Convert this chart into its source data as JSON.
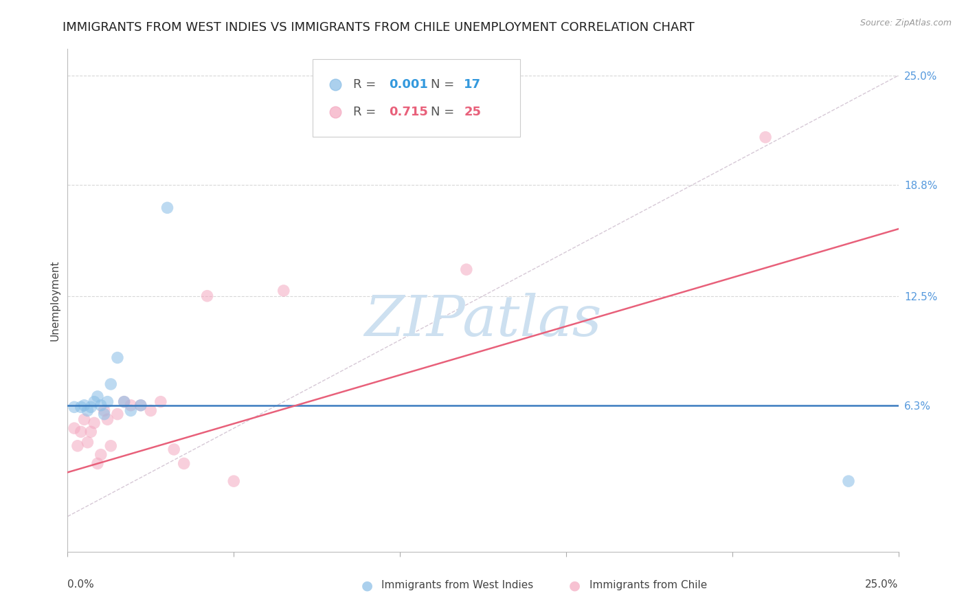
{
  "title": "IMMIGRANTS FROM WEST INDIES VS IMMIGRANTS FROM CHILE UNEMPLOYMENT CORRELATION CHART",
  "source": "Source: ZipAtlas.com",
  "ylabel": "Unemployment",
  "xlim": [
    0.0,
    0.25
  ],
  "ylim": [
    -0.02,
    0.265
  ],
  "legend_r1": "R = 0.001",
  "legend_n1": "N = 17",
  "legend_r2": "R = 0.715",
  "legend_n2": "N = 25",
  "blue_color": "#88bde6",
  "pink_color": "#f4a8c0",
  "blue_line_color": "#3a7bbf",
  "pink_line_color": "#e8607a",
  "diag_color": "#ccbbcc",
  "west_indies_x": [
    0.002,
    0.004,
    0.005,
    0.006,
    0.007,
    0.008,
    0.009,
    0.01,
    0.011,
    0.012,
    0.013,
    0.015,
    0.017,
    0.019,
    0.022,
    0.03,
    0.235
  ],
  "west_indies_y": [
    0.062,
    0.062,
    0.063,
    0.06,
    0.062,
    0.065,
    0.068,
    0.063,
    0.058,
    0.065,
    0.075,
    0.09,
    0.065,
    0.06,
    0.063,
    0.175,
    0.02
  ],
  "chile_x": [
    0.002,
    0.003,
    0.004,
    0.005,
    0.006,
    0.007,
    0.008,
    0.009,
    0.01,
    0.011,
    0.012,
    0.013,
    0.015,
    0.017,
    0.019,
    0.022,
    0.025,
    0.028,
    0.032,
    0.035,
    0.042,
    0.05,
    0.065,
    0.12,
    0.21
  ],
  "chile_y": [
    0.05,
    0.04,
    0.048,
    0.055,
    0.042,
    0.048,
    0.053,
    0.03,
    0.035,
    0.06,
    0.055,
    0.04,
    0.058,
    0.065,
    0.063,
    0.063,
    0.06,
    0.065,
    0.038,
    0.03,
    0.125,
    0.02,
    0.128,
    0.14,
    0.215
  ],
  "blue_trend": [
    0.063,
    0.063
  ],
  "pink_trend_start": 0.025,
  "pink_trend_end": 0.163,
  "background_color": "#ffffff",
  "grid_color": "#d8d8d8",
  "title_fontsize": 13,
  "axis_label_fontsize": 11,
  "tick_fontsize": 11,
  "legend_fontsize": 13,
  "watermark": "ZIPatlas",
  "watermark_color": "#cde0f0",
  "watermark_fontsize": 60,
  "ytick_values": [
    0.063,
    0.125,
    0.188,
    0.25
  ],
  "ytick_labels": [
    "6.3%",
    "12.5%",
    "18.8%",
    "25.0%"
  ]
}
